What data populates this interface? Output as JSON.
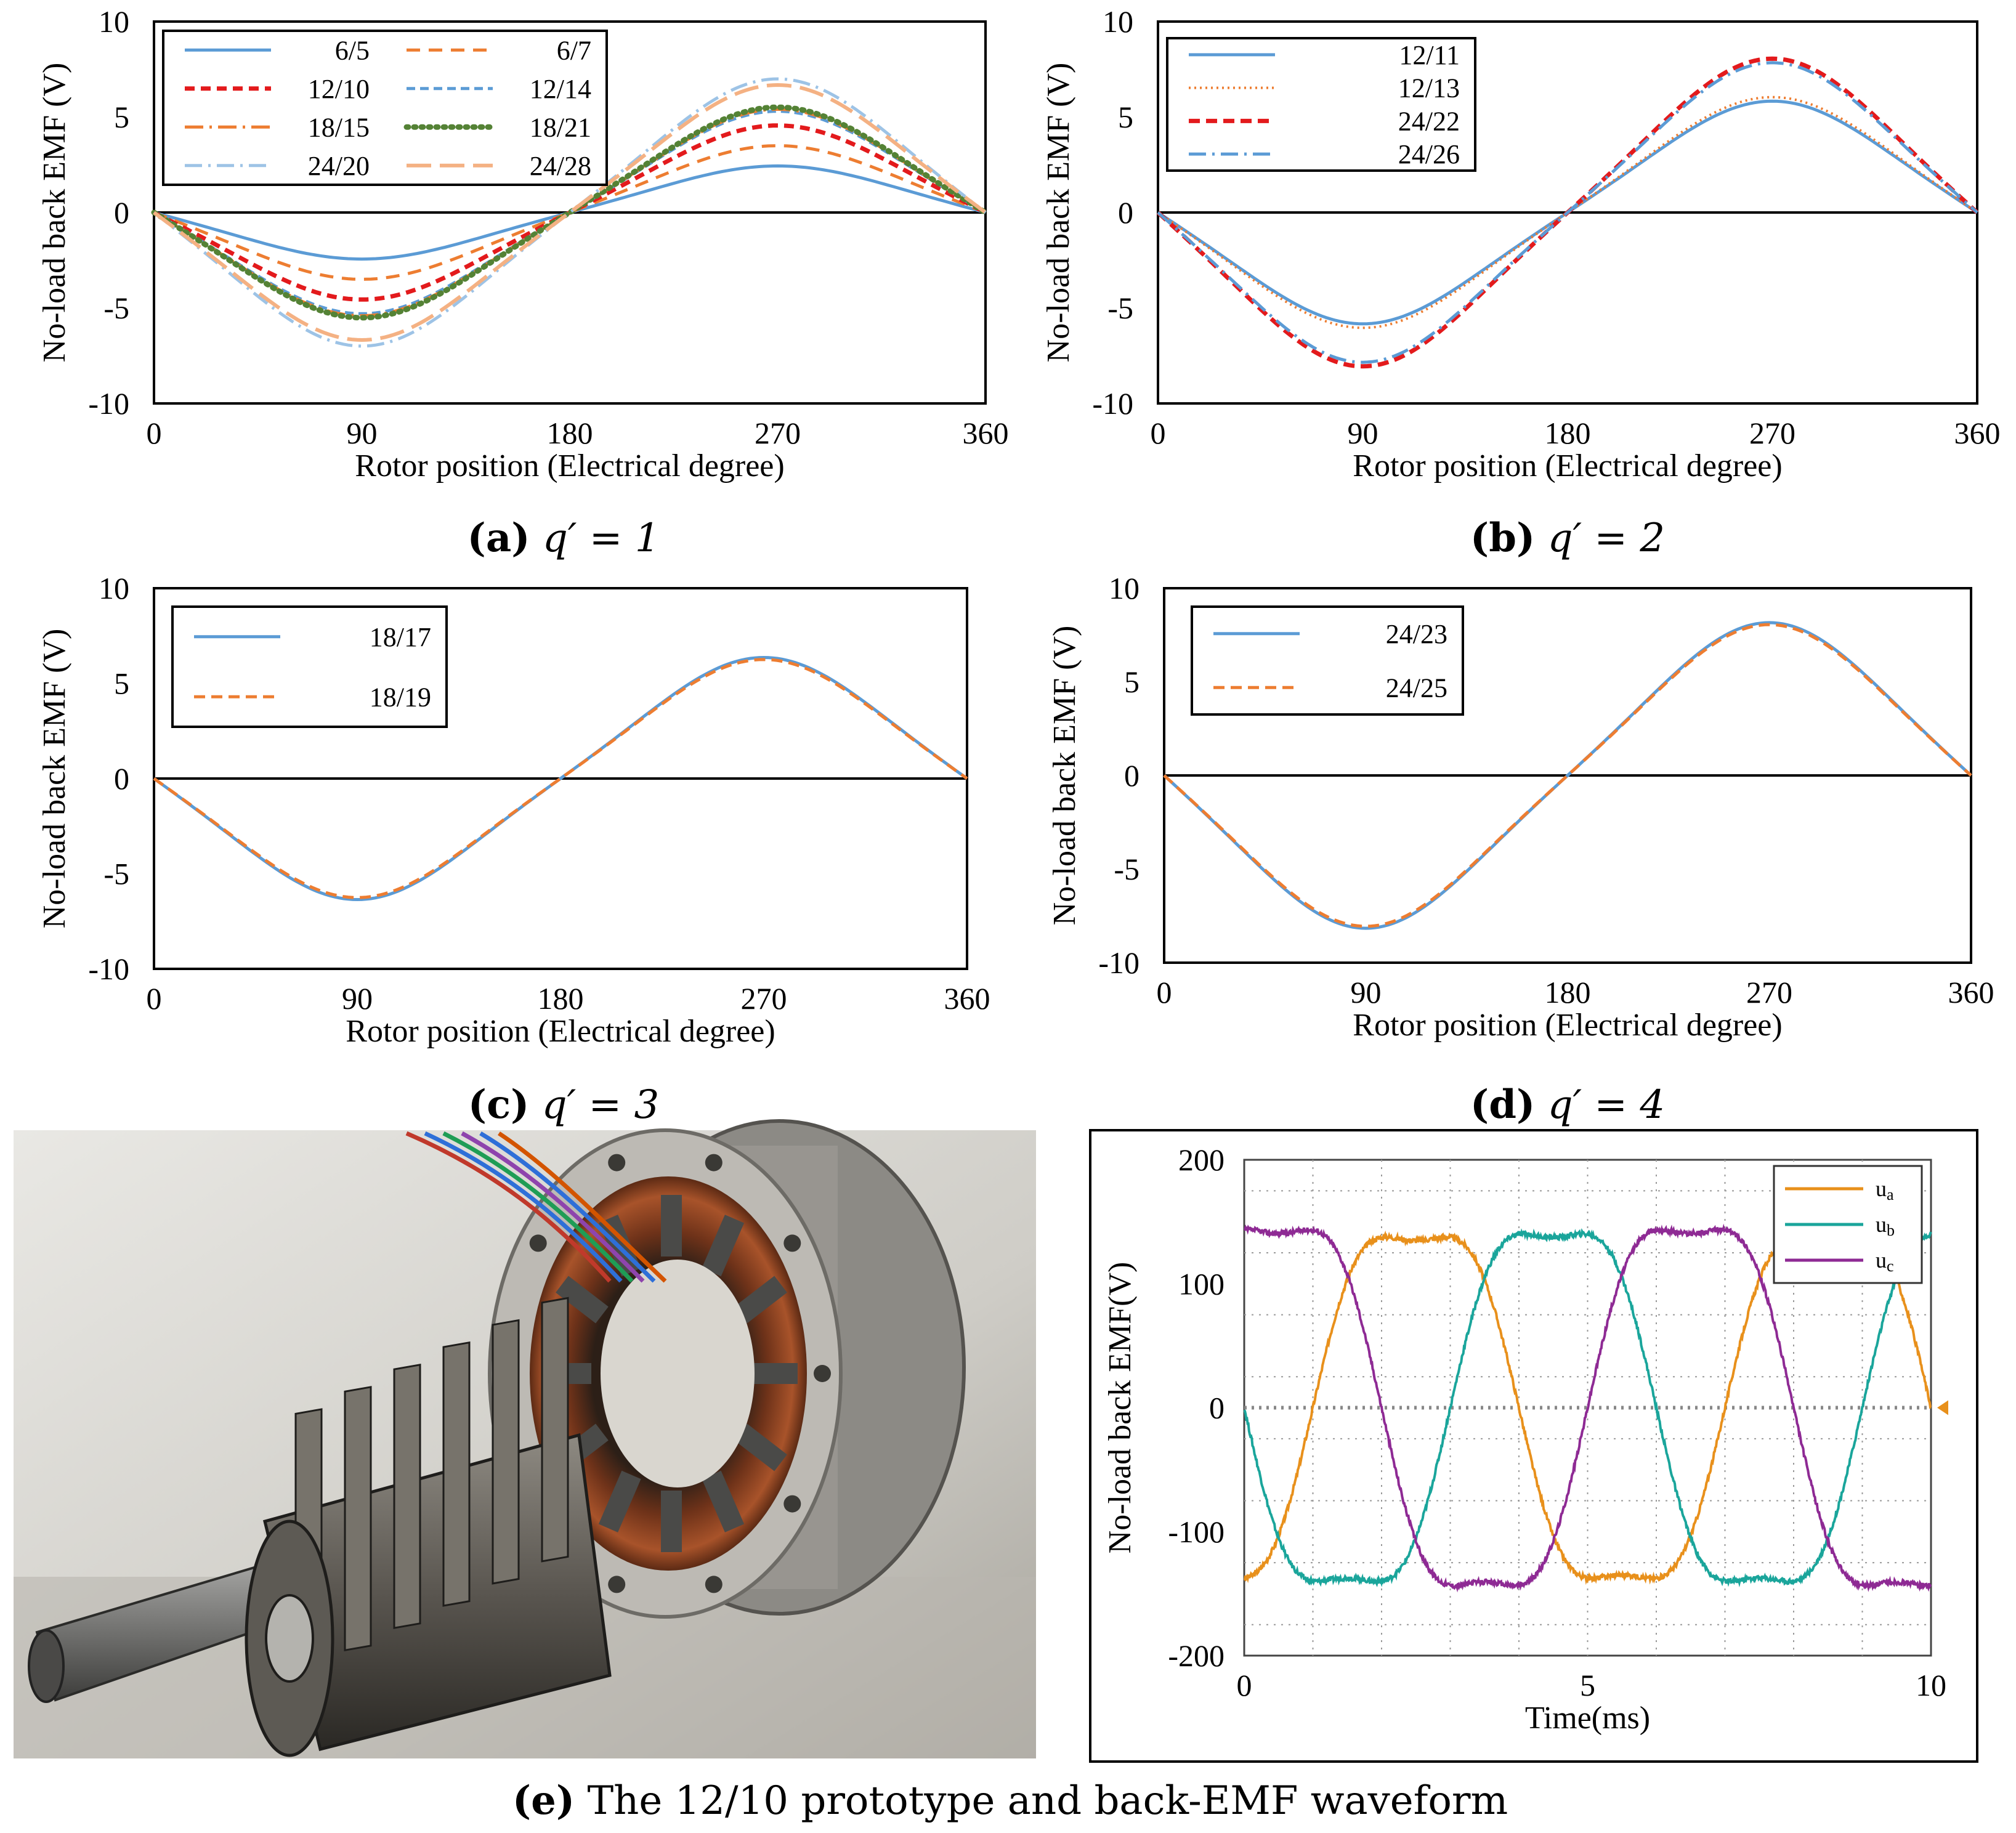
{
  "chart_data": [
    {
      "type": "line",
      "panel": "a",
      "caption_bold": "(a)",
      "caption_rest": "q′ = 1",
      "xlabel": "Rotor position (Electrical degree)",
      "ylabel": "No-load back EMF (V)",
      "xlim": [
        0,
        360
      ],
      "ylim": [
        -10,
        10
      ],
      "xticks": [
        0,
        90,
        180,
        270,
        360
      ],
      "yticks": [
        -10,
        -5,
        0,
        5,
        10
      ],
      "legend": "top-left, two columns",
      "series": [
        {
          "name": "6/5",
          "amplitude": 2.3,
          "color": "#5b9bd5",
          "dash": "solid",
          "width": 5
        },
        {
          "name": "6/7",
          "amplitude": 3.3,
          "color": "#ed7d31",
          "dash": "22,14",
          "width": 5
        },
        {
          "name": "12/10",
          "amplitude": 4.3,
          "color": "#e31a1c",
          "dash": "16,10",
          "width": 7
        },
        {
          "name": "12/14",
          "amplitude": 5.0,
          "color": "#5b9bd5",
          "dash": "14,8",
          "width": 5
        },
        {
          "name": "18/15",
          "amplitude": 5.1,
          "color": "#ed7d31",
          "dash": "30,10,4,10",
          "width": 5
        },
        {
          "name": "18/21",
          "amplitude": 5.2,
          "color": "#548235",
          "dash": "3,9",
          "width": 9
        },
        {
          "name": "24/20",
          "amplitude": 6.6,
          "color": "#9dc3e6",
          "dash": "28,10,4,10",
          "width": 5
        },
        {
          "name": "24/28",
          "amplitude": 6.3,
          "color": "#f4b183",
          "dash": "40,14",
          "width": 6
        }
      ]
    },
    {
      "type": "line",
      "panel": "b",
      "caption_bold": "(b)",
      "caption_rest": "q′ = 2",
      "xlabel": "Rotor position (Electrical degree)",
      "ylabel": "No-load back EMF (V)",
      "xlim": [
        0,
        360
      ],
      "ylim": [
        -10,
        10
      ],
      "xticks": [
        0,
        90,
        180,
        270,
        360
      ],
      "yticks": [
        -10,
        -5,
        0,
        5,
        10
      ],
      "legend": "top-left",
      "series": [
        {
          "name": "12/11",
          "amplitude": 5.5,
          "color": "#5b9bd5",
          "dash": "solid",
          "width": 5
        },
        {
          "name": "12/13",
          "amplitude": 5.7,
          "color": "#ed7d31",
          "dash": "3,6",
          "width": 4
        },
        {
          "name": "24/22",
          "amplitude": 7.6,
          "color": "#e31a1c",
          "dash": "18,10",
          "width": 7
        },
        {
          "name": "24/26",
          "amplitude": 7.4,
          "color": "#5b9bd5",
          "dash": "28,10,4,10",
          "width": 5
        }
      ]
    },
    {
      "type": "line",
      "panel": "c",
      "caption_bold": "(c)",
      "caption_rest": "q′ = 3",
      "xlabel": "Rotor position (Electrical degree)",
      "ylabel": "No-load back EMF (V)",
      "xlim": [
        0,
        360
      ],
      "ylim": [
        -10,
        10
      ],
      "xticks": [
        0,
        90,
        180,
        270,
        360
      ],
      "yticks": [
        -10,
        -5,
        0,
        5,
        10
      ],
      "legend": "top-left",
      "series": [
        {
          "name": "18/17",
          "amplitude": 6.0,
          "color": "#5b9bd5",
          "dash": "solid",
          "width": 5
        },
        {
          "name": "18/19",
          "amplitude": 5.9,
          "color": "#ed7d31",
          "dash": "18,10",
          "width": 5
        }
      ]
    },
    {
      "type": "line",
      "panel": "d",
      "caption_bold": "(d)",
      "caption_rest": "q′ = 4",
      "xlabel": "Rotor position (Electrical degree)",
      "ylabel": "No-load back EMF (V)",
      "xlim": [
        0,
        360
      ],
      "ylim": [
        -10,
        10
      ],
      "xticks": [
        0,
        90,
        180,
        270,
        360
      ],
      "yticks": [
        -10,
        -5,
        0,
        5,
        10
      ],
      "legend": "top-left",
      "series": [
        {
          "name": "24/23",
          "amplitude": 7.7,
          "color": "#5b9bd5",
          "dash": "solid",
          "width": 5
        },
        {
          "name": "24/25",
          "amplitude": 7.6,
          "color": "#ed7d31",
          "dash": "18,10",
          "width": 5
        }
      ]
    },
    {
      "type": "line",
      "panel": "e",
      "xlabel": "Time(ms)",
      "ylabel": "No-load back EMF(V)",
      "xlim": [
        0,
        10
      ],
      "ylim": [
        -200,
        200
      ],
      "xticks": [
        0,
        5,
        10
      ],
      "yticks": [
        -200,
        -100,
        0,
        100,
        200
      ],
      "grid": true,
      "legend": "top-right",
      "period_ms": 6.0,
      "series": [
        {
          "name": "ua",
          "legend_main": "u",
          "legend_sub": "a",
          "amplitude": 165,
          "phase_deg": 120,
          "color": "#e8901b"
        },
        {
          "name": "ub",
          "legend_main": "u",
          "legend_sub": "b",
          "amplitude": 168,
          "phase_deg": 0,
          "color": "#1aa59b"
        },
        {
          "name": "uc",
          "legend_main": "u",
          "legend_sub": "c",
          "amplitude": 172,
          "phase_deg": 240,
          "color": "#8e2a94"
        }
      ]
    }
  ],
  "caption_e_bold": "(e)",
  "caption_e_rest": "The 12/10 prototype and back-EMF waveform",
  "photo_icon": "motor-prototype-photo"
}
